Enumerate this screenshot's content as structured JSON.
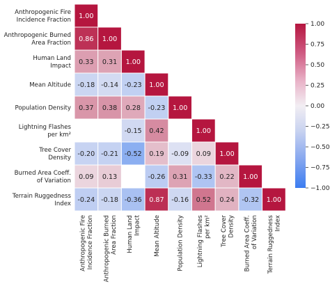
{
  "chart_data": {
    "type": "heatmap",
    "title": "",
    "variables": [
      "Anthropogenic Fire\nIncidence Fraction",
      "Anthropogenic Burned\nArea Fraction",
      "Human Land\nImpact",
      "Mean Altitude",
      "Population Density",
      "Lightning Flashes\nper km²",
      "Tree Cover\nDensity",
      "Burned Area Coeff.\nof Variation",
      "Terrain Ruggedness\nIndex"
    ],
    "matrix": [
      [
        1.0,
        null,
        null,
        null,
        null,
        null,
        null,
        null,
        null
      ],
      [
        0.86,
        1.0,
        null,
        null,
        null,
        null,
        null,
        null,
        null
      ],
      [
        0.33,
        0.31,
        1.0,
        null,
        null,
        null,
        null,
        null,
        null
      ],
      [
        -0.18,
        -0.14,
        -0.23,
        1.0,
        null,
        null,
        null,
        null,
        null
      ],
      [
        0.37,
        0.38,
        0.28,
        -0.23,
        1.0,
        null,
        null,
        null,
        null
      ],
      [
        null,
        null,
        -0.15,
        0.42,
        null,
        1.0,
        null,
        null,
        null
      ],
      [
        -0.2,
        -0.21,
        -0.52,
        0.19,
        -0.09,
        0.09,
        1.0,
        null,
        null
      ],
      [
        0.09,
        0.13,
        null,
        -0.26,
        0.31,
        -0.33,
        0.22,
        1.0,
        null
      ],
      [
        -0.24,
        -0.18,
        -0.36,
        0.87,
        -0.16,
        0.52,
        0.24,
        -0.32,
        1.0
      ]
    ],
    "colorbar": {
      "min": -1.0,
      "max": 1.0,
      "ticks": [
        1.0,
        0.75,
        0.5,
        0.25,
        0.0,
        -0.25,
        -0.5,
        -0.75,
        -1.0
      ],
      "tick_labels": [
        "1.00",
        "0.75",
        "0.50",
        "0.25",
        "0.00",
        "−0.25",
        "−0.50",
        "−0.75",
        "−1.00"
      ],
      "colors": {
        "neg": "#3b7cf0",
        "mid": "#f2eef3",
        "pos": "#b5163f"
      }
    }
  }
}
